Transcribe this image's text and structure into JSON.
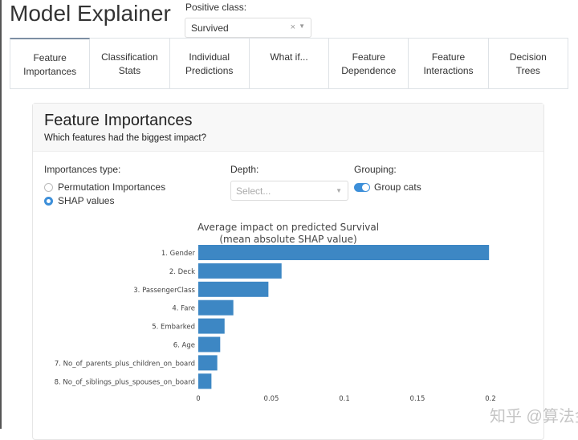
{
  "header": {
    "title": "Model Explainer",
    "positive_class_label": "Positive class:",
    "positive_class_value": "Survived"
  },
  "tabs": [
    {
      "label": "Feature\nImportances",
      "active": true
    },
    {
      "label": "Classification\nStats"
    },
    {
      "label": "Individual\nPredictions"
    },
    {
      "label": "What if..."
    },
    {
      "label": "Feature\nDependence"
    },
    {
      "label": "Feature\nInteractions"
    },
    {
      "label": "Decision\nTrees"
    }
  ],
  "card": {
    "title": "Feature Importances",
    "subtitle": "Which features had the biggest impact?",
    "importances_label": "Importances type:",
    "options": [
      "Permutation Importances",
      "SHAP values"
    ],
    "selected_option": "SHAP values",
    "depth_label": "Depth:",
    "depth_placeholder": "Select...",
    "grouping_label": "Grouping:",
    "group_cats_label": "Group cats",
    "group_cats_on": true
  },
  "chart_data": {
    "type": "bar",
    "orientation": "horizontal",
    "title": "Average impact on predicted Survival",
    "subtitle": "(mean absolute SHAP value)",
    "categories": [
      "1. Gender",
      "2. Deck",
      "3. PassengerClass",
      "4. Fare",
      "5. Embarked",
      "6. Age",
      "7. No_of_parents_plus_children_on_board",
      "8. No_of_siblings_plus_spouses_on_board"
    ],
    "values": [
      0.199,
      0.057,
      0.048,
      0.024,
      0.018,
      0.015,
      0.013,
      0.009
    ],
    "xticks": [
      "0",
      "0.05",
      "0.1",
      "0.15",
      "0.2"
    ],
    "xlim": [
      0,
      0.2
    ],
    "bar_color": "#3d87c4"
  },
  "watermark": "知乎 @算法金"
}
